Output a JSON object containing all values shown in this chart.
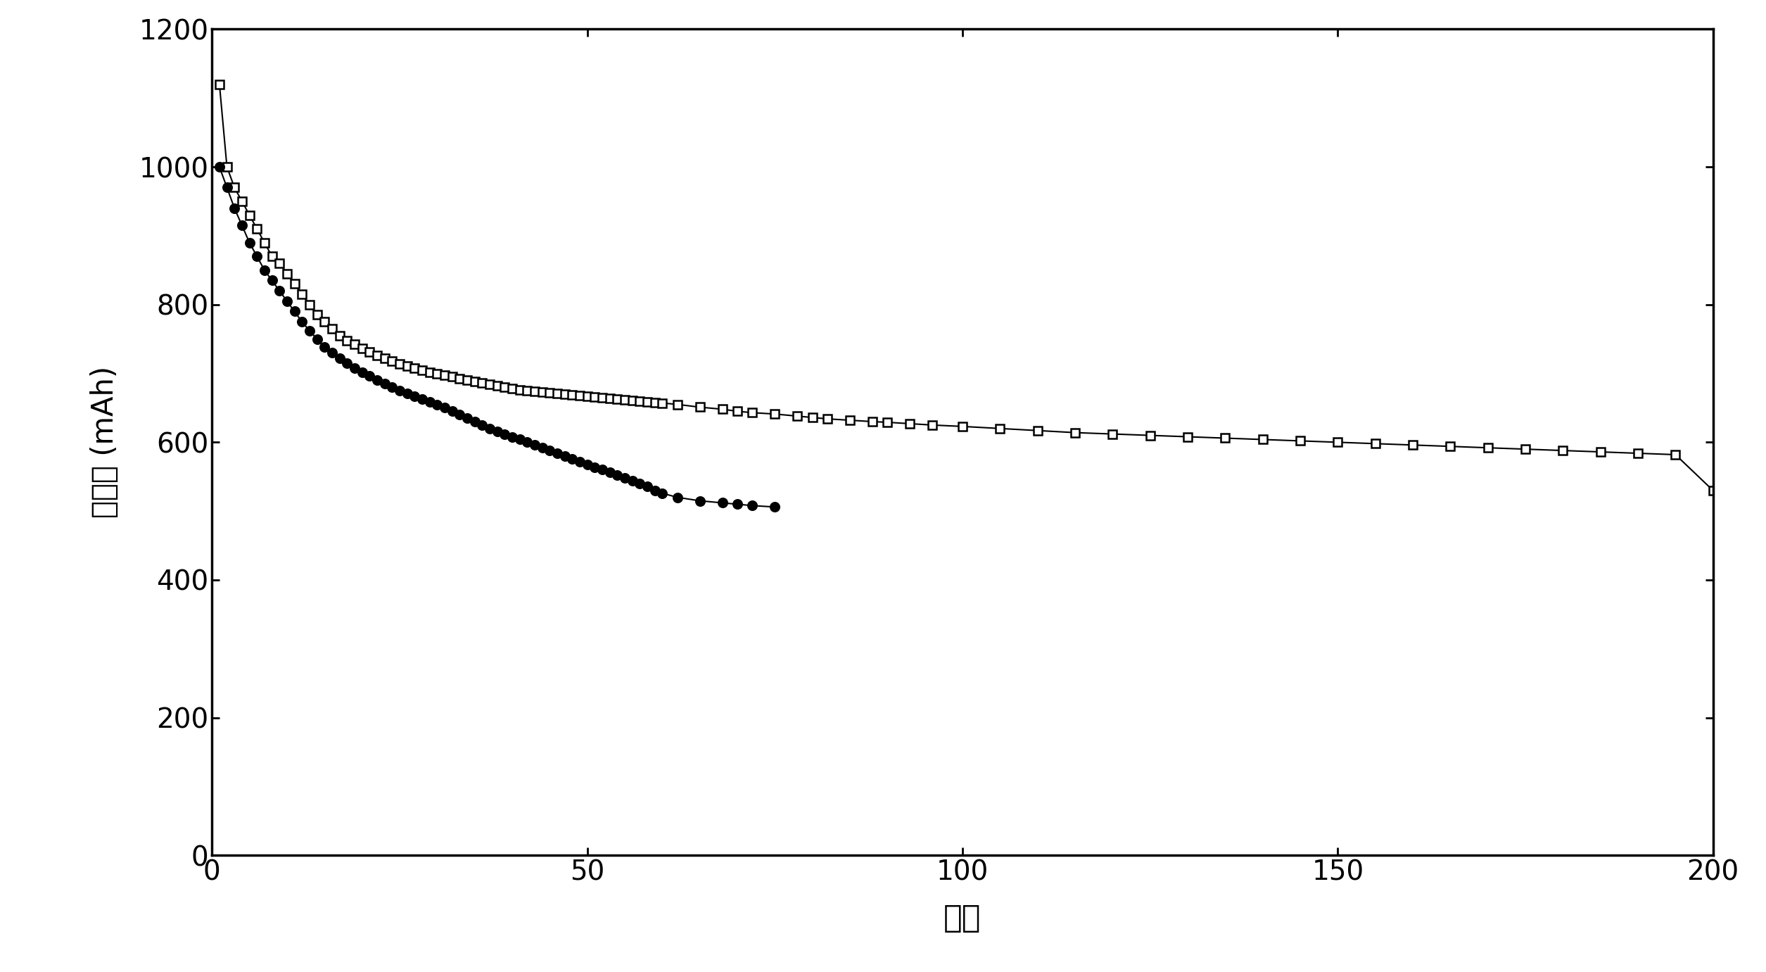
{
  "title": "",
  "xlabel": "循环",
  "ylabel_line1": "放电量 (mAh)",
  "xlim": [
    0,
    200
  ],
  "ylim": [
    0,
    1200
  ],
  "xticks": [
    0,
    50,
    100,
    150,
    200
  ],
  "yticks": [
    0,
    200,
    400,
    600,
    800,
    1000,
    1200
  ],
  "background_color": "#ffffff",
  "series1_x": [
    1,
    2,
    3,
    4,
    5,
    6,
    7,
    8,
    9,
    10,
    11,
    12,
    13,
    14,
    15,
    16,
    17,
    18,
    19,
    20,
    21,
    22,
    23,
    24,
    25,
    26,
    27,
    28,
    29,
    30,
    31,
    32,
    33,
    34,
    35,
    36,
    37,
    38,
    39,
    40,
    41,
    42,
    43,
    44,
    45,
    46,
    47,
    48,
    49,
    50,
    51,
    52,
    53,
    54,
    55,
    56,
    57,
    58,
    59,
    60,
    62,
    65,
    68,
    70,
    72,
    75,
    78,
    80,
    82,
    85,
    88,
    90,
    93,
    96,
    100,
    105,
    110,
    115,
    120,
    125,
    130,
    135,
    140,
    145,
    150,
    155,
    160,
    165,
    170,
    175,
    180,
    185,
    190,
    195,
    200
  ],
  "series1_y": [
    1120,
    1000,
    970,
    950,
    930,
    910,
    890,
    870,
    860,
    845,
    830,
    815,
    800,
    785,
    775,
    765,
    755,
    748,
    742,
    736,
    731,
    726,
    722,
    718,
    714,
    711,
    708,
    705,
    702,
    700,
    697,
    695,
    692,
    690,
    688,
    686,
    684,
    682,
    680,
    678,
    676,
    675,
    674,
    673,
    672,
    671,
    670,
    669,
    668,
    667,
    666,
    665,
    664,
    663,
    662,
    661,
    660,
    659,
    658,
    657,
    655,
    651,
    648,
    645,
    643,
    641,
    638,
    636,
    634,
    632,
    630,
    629,
    627,
    625,
    623,
    620,
    617,
    614,
    612,
    610,
    608,
    606,
    604,
    602,
    600,
    598,
    596,
    594,
    592,
    590,
    588,
    586,
    584,
    582,
    530
  ],
  "series2_x": [
    1,
    2,
    3,
    4,
    5,
    6,
    7,
    8,
    9,
    10,
    11,
    12,
    13,
    14,
    15,
    16,
    17,
    18,
    19,
    20,
    21,
    22,
    23,
    24,
    25,
    26,
    27,
    28,
    29,
    30,
    31,
    32,
    33,
    34,
    35,
    36,
    37,
    38,
    39,
    40,
    41,
    42,
    43,
    44,
    45,
    46,
    47,
    48,
    49,
    50,
    51,
    52,
    53,
    54,
    55,
    56,
    57,
    58,
    59,
    60,
    62,
    65,
    68,
    70,
    72,
    75
  ],
  "series2_y": [
    1000,
    970,
    940,
    915,
    890,
    870,
    850,
    835,
    820,
    805,
    790,
    775,
    762,
    750,
    738,
    730,
    722,
    715,
    708,
    702,
    696,
    690,
    685,
    680,
    675,
    671,
    667,
    663,
    659,
    655,
    650,
    645,
    640,
    635,
    630,
    625,
    620,
    616,
    612,
    608,
    604,
    600,
    596,
    592,
    588,
    584,
    580,
    576,
    572,
    568,
    564,
    560,
    556,
    552,
    548,
    544,
    540,
    536,
    530,
    526,
    520,
    515,
    512,
    510,
    508,
    506
  ],
  "line_color": "#000000"
}
